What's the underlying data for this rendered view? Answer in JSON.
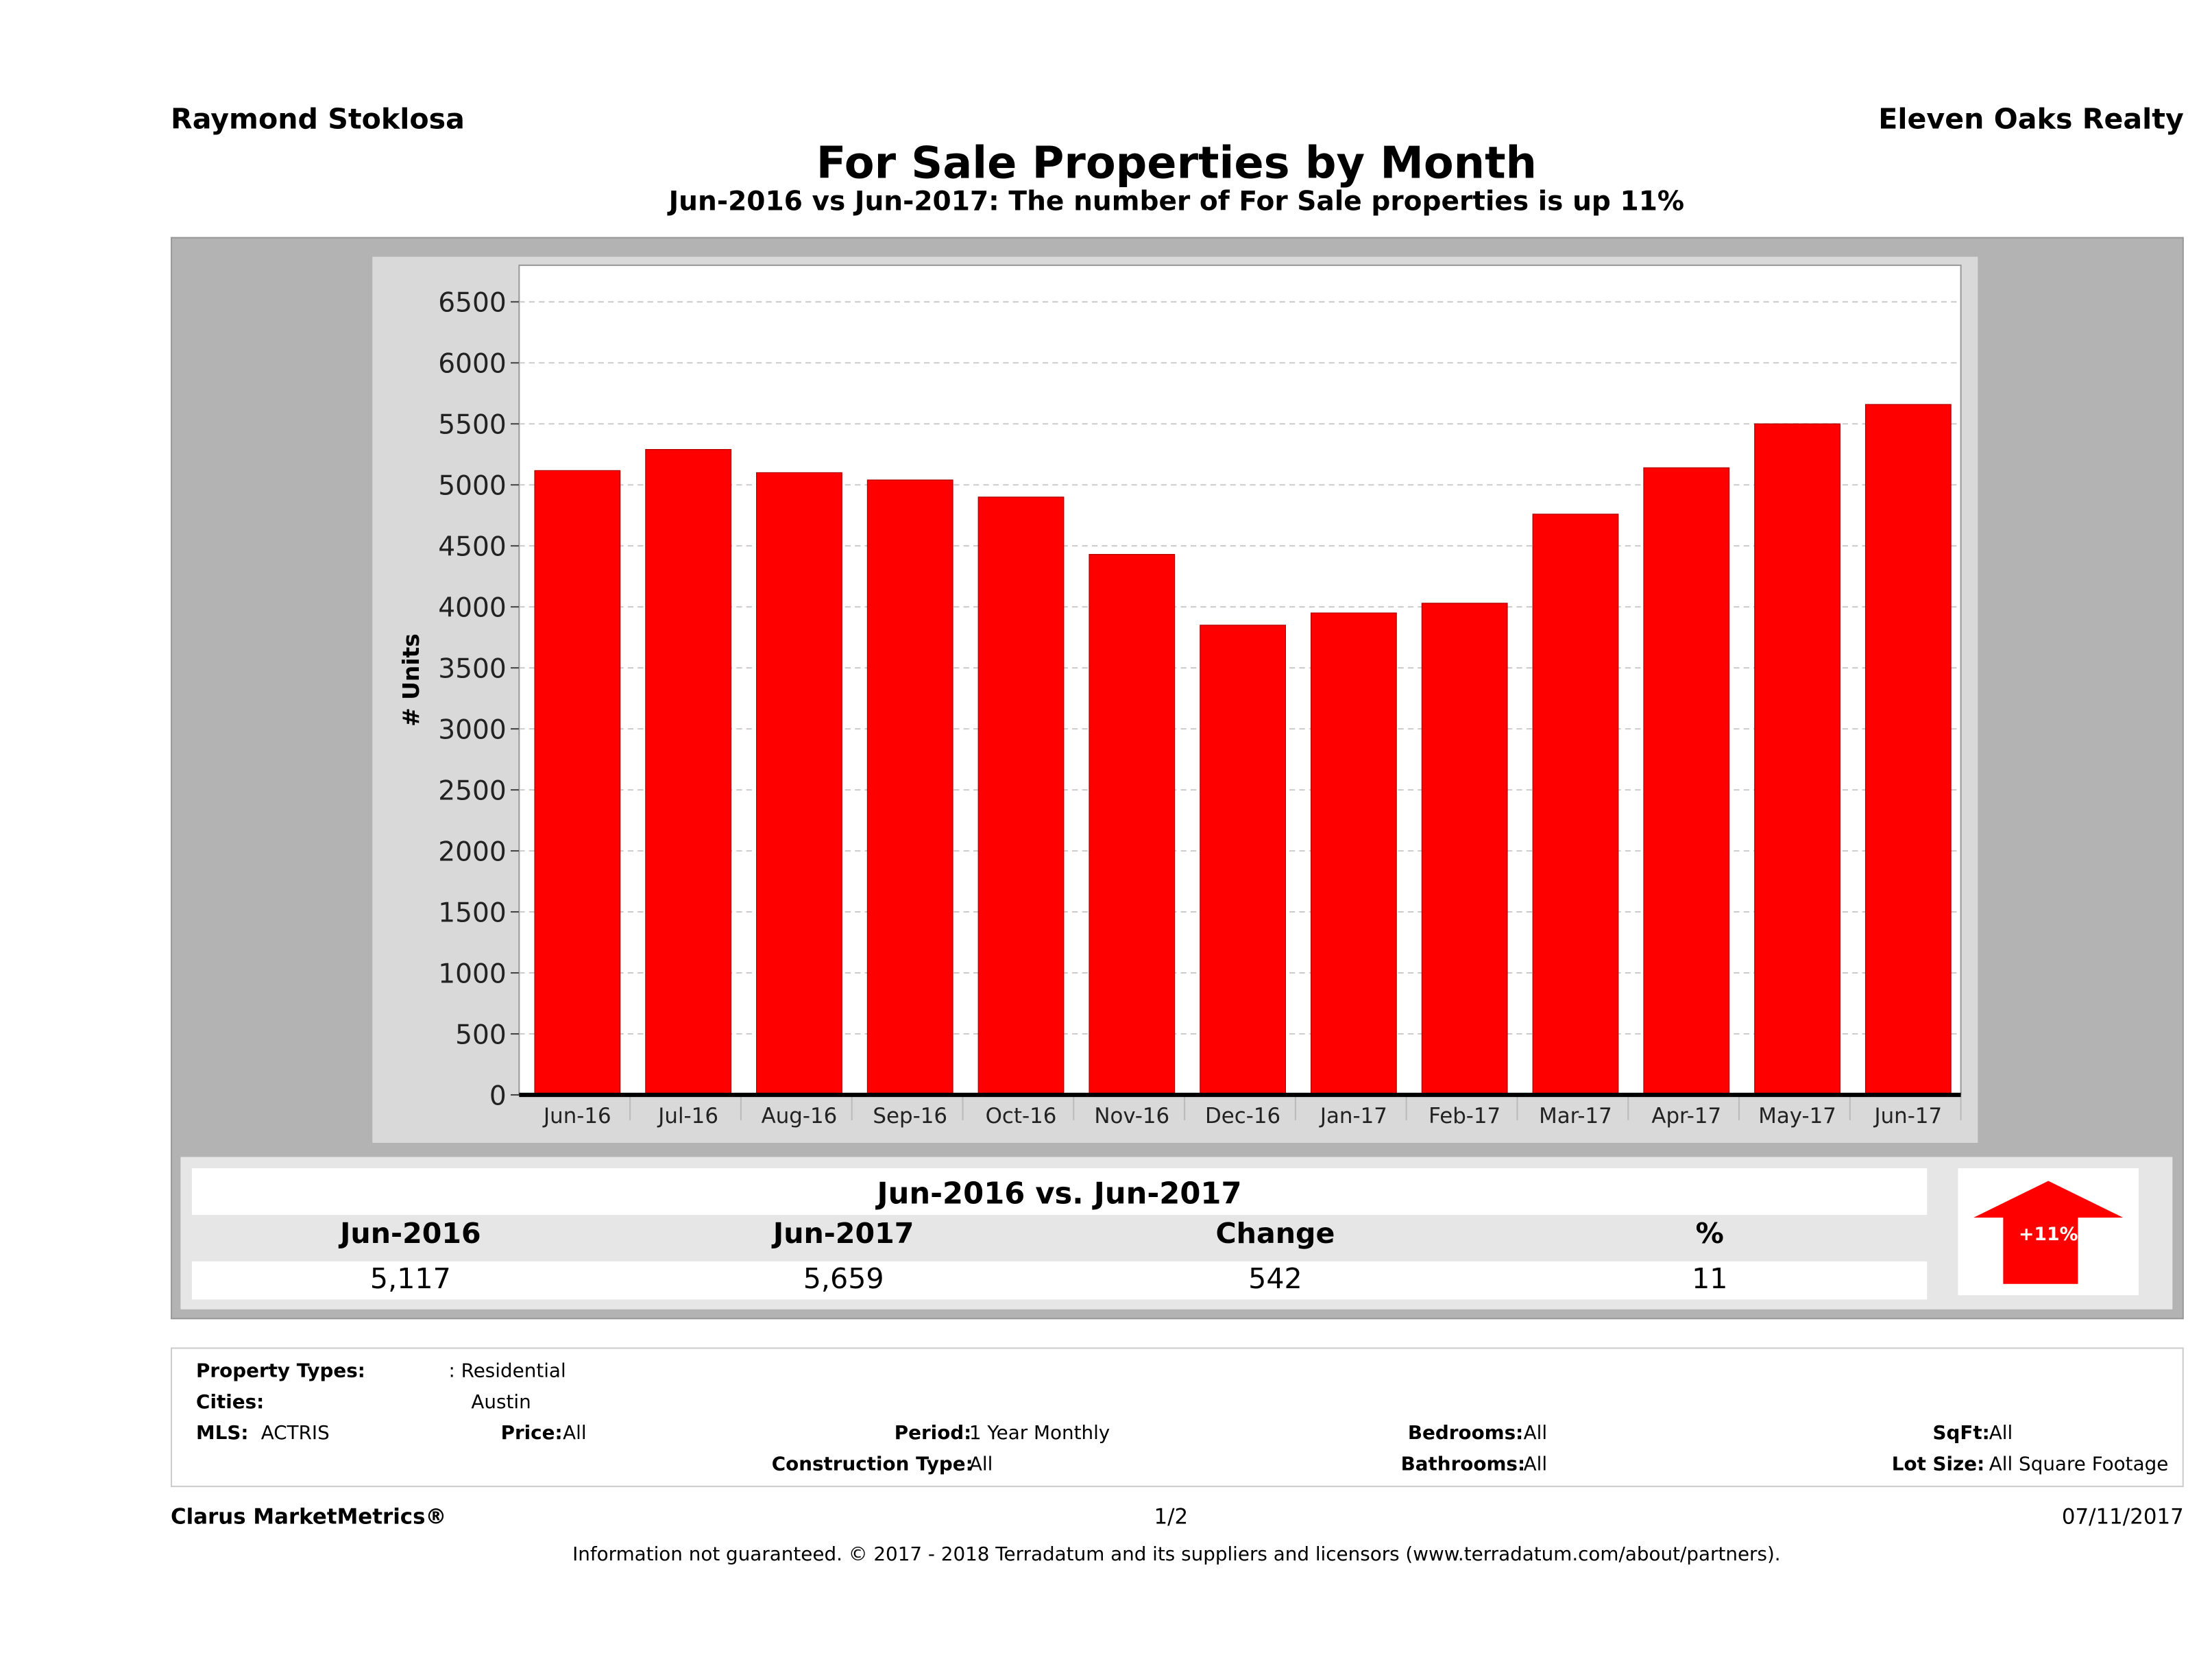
{
  "header": {
    "agent": "Raymond Stoklosa",
    "brokerage": "Eleven Oaks Realty",
    "title": "For Sale Properties by Month",
    "subtitle": "Jun-2016 vs Jun-2017: The number of For Sale  properties is up 11%"
  },
  "chart_data": {
    "type": "bar",
    "title": "For Sale Properties by Month",
    "xlabel": "",
    "ylabel": "# Units",
    "categories": [
      "Jun-16",
      "Jul-16",
      "Aug-16",
      "Sep-16",
      "Oct-16",
      "Nov-16",
      "Dec-16",
      "Jan-17",
      "Feb-17",
      "Mar-17",
      "Apr-17",
      "May-17",
      "Jun-17"
    ],
    "values": [
      5117,
      5290,
      5100,
      5040,
      4900,
      4430,
      3850,
      3950,
      4030,
      4760,
      5140,
      5500,
      5659
    ],
    "ylim": [
      0,
      6800
    ],
    "yticks": [
      0,
      500,
      1000,
      1500,
      2000,
      2500,
      3000,
      3500,
      4000,
      4500,
      5000,
      5500,
      6000,
      6500
    ],
    "grid": true,
    "bar_color": "#ff0000"
  },
  "summary": {
    "heading": "Jun-2016 vs. Jun-2017",
    "columns": [
      "Jun-2016",
      "Jun-2017",
      "Change",
      "%"
    ],
    "values": [
      "5,117",
      "5,659",
      "542",
      "11"
    ],
    "badge": "+11%",
    "badge_icon": "up-arrow-icon",
    "badge_color": "#ff0000"
  },
  "info": {
    "property_types_label": "Property Types:",
    "property_types": ": Residential",
    "cities_label": "Cities:",
    "cities": "Austin",
    "mls_label": "MLS:",
    "mls": "ACTRIS",
    "price_label": "Price:",
    "price": "All",
    "period_label": "Period:",
    "period": "1 Year Monthly",
    "bedrooms_label": "Bedrooms:",
    "bedrooms": "All",
    "sqft_label": "SqFt:",
    "sqft": "All",
    "construction_label": "Construction Type:",
    "construction": "All",
    "bathrooms_label": "Bathrooms:",
    "bathrooms": "All",
    "lotsize_label": "Lot Size:",
    "lotsize": "All Square Footage"
  },
  "footer": {
    "brand": "Clarus MarketMetrics®",
    "page": "1/2",
    "date": "07/11/2017",
    "disclaimer": "Information not guaranteed. © 2017 - 2018 Terradatum and its suppliers and licensors (www.terradatum.com/about/partners)."
  }
}
